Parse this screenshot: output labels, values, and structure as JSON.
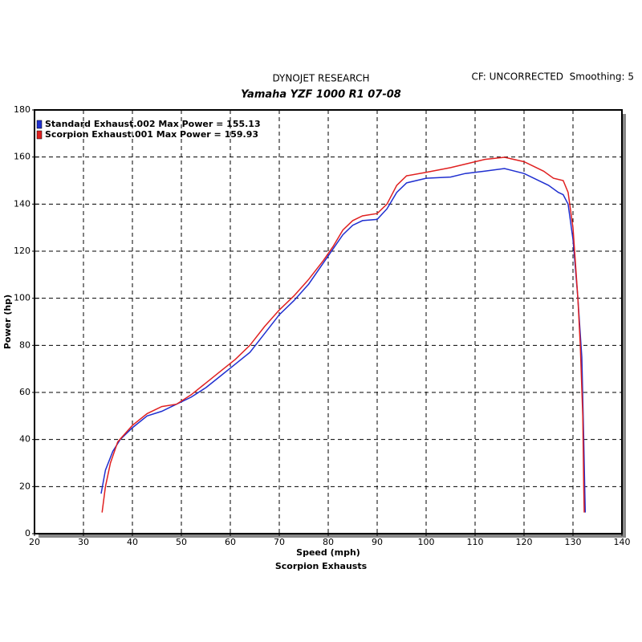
{
  "chart_data": {
    "type": "line",
    "title": "DYNOJET RESEARCH",
    "subtitle": "Yamaha YZF 1000 R1 07-08",
    "annotation": "CF: UNCORRECTED  Smoothing: 5",
    "x_label": "Speed (mph)",
    "y_label": "Power (hp)",
    "footer": "Scorpion Exhausts",
    "xlim": [
      20,
      140
    ],
    "xticks": [
      20,
      30,
      40,
      50,
      60,
      70,
      80,
      90,
      100,
      110,
      120,
      130,
      140
    ],
    "ylim": [
      0,
      180
    ],
    "yticks": [
      0,
      20,
      40,
      60,
      80,
      100,
      120,
      140,
      160,
      180
    ],
    "grid": true,
    "legend": "top-left",
    "series": [
      {
        "name": "Standard Exhaust.002 Max Power = 155.13",
        "color": "#1f2fd0",
        "x": [
          33.6,
          34.5,
          36,
          37.5,
          40,
          43,
          46,
          49,
          52,
          55,
          58,
          61,
          64,
          67,
          70,
          73,
          76,
          79,
          81,
          83,
          85,
          87,
          90,
          92,
          94,
          96,
          100,
          105,
          108,
          112,
          116,
          120,
          125,
          127,
          128,
          129,
          130,
          131,
          131.8,
          132.2,
          132.4,
          132.5
        ],
        "values": [
          17,
          27,
          35,
          40,
          45,
          50,
          52,
          55,
          58,
          62,
          67,
          72,
          77,
          85,
          93,
          99,
          106,
          115,
          121,
          127,
          131,
          133,
          133.5,
          138,
          145,
          149,
          151,
          151.5,
          153,
          154,
          155.1,
          153,
          148,
          145,
          144,
          140,
          125,
          100,
          75,
          40,
          20,
          9
        ]
      },
      {
        "name": "Scorpion Exhaust.001 Max Power = 159.93",
        "color": "#e02020",
        "x": [
          33.8,
          34.5,
          35.5,
          37,
          40,
          43,
          46,
          49,
          52,
          55,
          58,
          61,
          64,
          67,
          70,
          73,
          76,
          79,
          81,
          83,
          85,
          87,
          90,
          92,
          94,
          96,
          100,
          105,
          108,
          112,
          116,
          120,
          124,
          126,
          128,
          129,
          130,
          131,
          131.5,
          132,
          132.2,
          132.3
        ],
        "values": [
          9,
          20,
          30,
          39,
          46,
          51,
          54,
          55,
          59,
          64,
          69,
          74,
          80,
          88,
          95,
          101,
          108,
          116,
          122,
          129,
          133,
          135,
          136,
          140,
          148,
          152,
          153.5,
          155.5,
          157,
          159,
          159.9,
          158,
          154,
          151,
          150,
          145,
          130,
          100,
          80,
          50,
          20,
          9
        ]
      }
    ]
  }
}
